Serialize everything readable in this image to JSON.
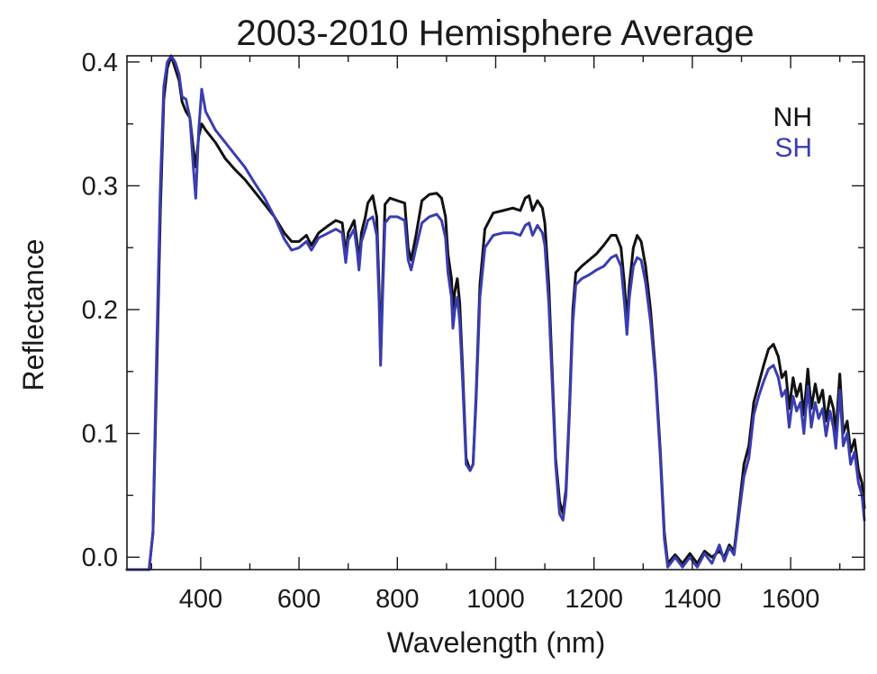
{
  "chart_data": {
    "type": "line",
    "title": "2003-2010 Hemisphere Average",
    "xlabel": "Wavelength (nm)",
    "ylabel": "Reflectance",
    "xlim": [
      250,
      1750
    ],
    "ylim": [
      -0.01,
      0.405
    ],
    "x_ticks": [
      {
        "value": 400,
        "label": "400"
      },
      {
        "value": 600,
        "label": "600"
      },
      {
        "value": 800,
        "label": "800"
      },
      {
        "value": 1000,
        "label": "1000"
      },
      {
        "value": 1200,
        "label": "1200"
      },
      {
        "value": 1400,
        "label": "1400"
      },
      {
        "value": 1600,
        "label": "1600"
      }
    ],
    "y_ticks": [
      {
        "value": 0.0,
        "label": "0.0"
      },
      {
        "value": 0.1,
        "label": "0.1"
      },
      {
        "value": 0.2,
        "label": "0.2"
      },
      {
        "value": 0.3,
        "label": "0.3"
      },
      {
        "value": 0.4,
        "label": "0.4"
      }
    ],
    "grid": false,
    "legend_position": "top-right",
    "series": [
      {
        "name": "NH",
        "color": "#111111",
        "points": [
          [
            250,
            -0.01
          ],
          [
            295,
            -0.01
          ],
          [
            303,
            0.02
          ],
          [
            310,
            0.14
          ],
          [
            318,
            0.28
          ],
          [
            325,
            0.37
          ],
          [
            332,
            0.395
          ],
          [
            340,
            0.405
          ],
          [
            348,
            0.395
          ],
          [
            356,
            0.385
          ],
          [
            362,
            0.368
          ],
          [
            370,
            0.36
          ],
          [
            378,
            0.355
          ],
          [
            385,
            0.33
          ],
          [
            390,
            0.315
          ],
          [
            396,
            0.34
          ],
          [
            402,
            0.35
          ],
          [
            410,
            0.345
          ],
          [
            430,
            0.335
          ],
          [
            450,
            0.322
          ],
          [
            470,
            0.313
          ],
          [
            490,
            0.305
          ],
          [
            510,
            0.295
          ],
          [
            530,
            0.285
          ],
          [
            550,
            0.275
          ],
          [
            570,
            0.262
          ],
          [
            585,
            0.255
          ],
          [
            600,
            0.255
          ],
          [
            615,
            0.26
          ],
          [
            625,
            0.252
          ],
          [
            640,
            0.262
          ],
          [
            660,
            0.268
          ],
          [
            675,
            0.272
          ],
          [
            688,
            0.27
          ],
          [
            695,
            0.245
          ],
          [
            700,
            0.262
          ],
          [
            712,
            0.272
          ],
          [
            718,
            0.255
          ],
          [
            722,
            0.238
          ],
          [
            727,
            0.262
          ],
          [
            735,
            0.275
          ],
          [
            740,
            0.286
          ],
          [
            750,
            0.292
          ],
          [
            758,
            0.275
          ],
          [
            763,
            0.215
          ],
          [
            766,
            0.16
          ],
          [
            770,
            0.22
          ],
          [
            775,
            0.285
          ],
          [
            785,
            0.29
          ],
          [
            800,
            0.288
          ],
          [
            815,
            0.286
          ],
          [
            822,
            0.25
          ],
          [
            828,
            0.24
          ],
          [
            838,
            0.26
          ],
          [
            850,
            0.288
          ],
          [
            865,
            0.293
          ],
          [
            880,
            0.294
          ],
          [
            890,
            0.29
          ],
          [
            898,
            0.275
          ],
          [
            903,
            0.245
          ],
          [
            910,
            0.225
          ],
          [
            913,
            0.2
          ],
          [
            917,
            0.215
          ],
          [
            922,
            0.225
          ],
          [
            927,
            0.205
          ],
          [
            933,
            0.15
          ],
          [
            940,
            0.08
          ],
          [
            948,
            0.07
          ],
          [
            954,
            0.075
          ],
          [
            960,
            0.13
          ],
          [
            968,
            0.22
          ],
          [
            978,
            0.265
          ],
          [
            995,
            0.278
          ],
          [
            1015,
            0.28
          ],
          [
            1035,
            0.282
          ],
          [
            1050,
            0.28
          ],
          [
            1060,
            0.29
          ],
          [
            1068,
            0.292
          ],
          [
            1075,
            0.28
          ],
          [
            1085,
            0.288
          ],
          [
            1095,
            0.282
          ],
          [
            1100,
            0.27
          ],
          [
            1108,
            0.22
          ],
          [
            1115,
            0.15
          ],
          [
            1122,
            0.08
          ],
          [
            1130,
            0.045
          ],
          [
            1137,
            0.035
          ],
          [
            1143,
            0.055
          ],
          [
            1150,
            0.12
          ],
          [
            1157,
            0.2
          ],
          [
            1163,
            0.23
          ],
          [
            1175,
            0.235
          ],
          [
            1190,
            0.24
          ],
          [
            1205,
            0.245
          ],
          [
            1220,
            0.252
          ],
          [
            1235,
            0.26
          ],
          [
            1245,
            0.26
          ],
          [
            1255,
            0.25
          ],
          [
            1262,
            0.22
          ],
          [
            1267,
            0.19
          ],
          [
            1272,
            0.22
          ],
          [
            1280,
            0.25
          ],
          [
            1288,
            0.26
          ],
          [
            1296,
            0.255
          ],
          [
            1305,
            0.235
          ],
          [
            1315,
            0.2
          ],
          [
            1325,
            0.15
          ],
          [
            1335,
            0.085
          ],
          [
            1343,
            0.02
          ],
          [
            1350,
            -0.005
          ],
          [
            1365,
            0.002
          ],
          [
            1380,
            -0.005
          ],
          [
            1395,
            0.003
          ],
          [
            1410,
            -0.005
          ],
          [
            1425,
            0.005
          ],
          [
            1440,
            0.0
          ],
          [
            1455,
            0.005
          ],
          [
            1465,
            0.0
          ],
          [
            1475,
            0.01
          ],
          [
            1485,
            0.005
          ],
          [
            1495,
            0.04
          ],
          [
            1505,
            0.075
          ],
          [
            1515,
            0.09
          ],
          [
            1525,
            0.125
          ],
          [
            1535,
            0.14
          ],
          [
            1545,
            0.155
          ],
          [
            1555,
            0.168
          ],
          [
            1565,
            0.172
          ],
          [
            1575,
            0.162
          ],
          [
            1582,
            0.145
          ],
          [
            1590,
            0.15
          ],
          [
            1597,
            0.12
          ],
          [
            1605,
            0.145
          ],
          [
            1612,
            0.13
          ],
          [
            1620,
            0.14
          ],
          [
            1627,
            0.115
          ],
          [
            1635,
            0.152
          ],
          [
            1642,
            0.12
          ],
          [
            1650,
            0.14
          ],
          [
            1657,
            0.125
          ],
          [
            1665,
            0.135
          ],
          [
            1672,
            0.11
          ],
          [
            1680,
            0.13
          ],
          [
            1687,
            0.12
          ],
          [
            1692,
            0.1
          ],
          [
            1700,
            0.148
          ],
          [
            1707,
            0.1
          ],
          [
            1715,
            0.11
          ],
          [
            1722,
            0.085
          ],
          [
            1730,
            0.095
          ],
          [
            1738,
            0.07
          ],
          [
            1745,
            0.06
          ],
          [
            1750,
            0.04
          ]
        ]
      },
      {
        "name": "SH",
        "color": "#3a3db0",
        "points": [
          [
            250,
            -0.01
          ],
          [
            295,
            -0.01
          ],
          [
            303,
            0.02
          ],
          [
            310,
            0.16
          ],
          [
            318,
            0.3
          ],
          [
            325,
            0.38
          ],
          [
            332,
            0.4
          ],
          [
            340,
            0.405
          ],
          [
            348,
            0.4
          ],
          [
            356,
            0.39
          ],
          [
            362,
            0.372
          ],
          [
            370,
            0.37
          ],
          [
            378,
            0.355
          ],
          [
            385,
            0.315
          ],
          [
            390,
            0.29
          ],
          [
            396,
            0.345
          ],
          [
            402,
            0.378
          ],
          [
            410,
            0.36
          ],
          [
            430,
            0.345
          ],
          [
            450,
            0.335
          ],
          [
            470,
            0.325
          ],
          [
            490,
            0.315
          ],
          [
            510,
            0.302
          ],
          [
            530,
            0.29
          ],
          [
            550,
            0.275
          ],
          [
            570,
            0.257
          ],
          [
            585,
            0.248
          ],
          [
            600,
            0.25
          ],
          [
            615,
            0.255
          ],
          [
            625,
            0.248
          ],
          [
            640,
            0.258
          ],
          [
            660,
            0.262
          ],
          [
            675,
            0.265
          ],
          [
            688,
            0.262
          ],
          [
            695,
            0.238
          ],
          [
            700,
            0.256
          ],
          [
            712,
            0.265
          ],
          [
            718,
            0.248
          ],
          [
            722,
            0.232
          ],
          [
            727,
            0.255
          ],
          [
            735,
            0.265
          ],
          [
            740,
            0.272
          ],
          [
            750,
            0.275
          ],
          [
            758,
            0.26
          ],
          [
            763,
            0.205
          ],
          [
            766,
            0.155
          ],
          [
            770,
            0.21
          ],
          [
            775,
            0.27
          ],
          [
            785,
            0.275
          ],
          [
            800,
            0.275
          ],
          [
            815,
            0.272
          ],
          [
            822,
            0.24
          ],
          [
            828,
            0.232
          ],
          [
            838,
            0.25
          ],
          [
            850,
            0.27
          ],
          [
            865,
            0.275
          ],
          [
            880,
            0.277
          ],
          [
            890,
            0.272
          ],
          [
            898,
            0.258
          ],
          [
            903,
            0.23
          ],
          [
            910,
            0.21
          ],
          [
            913,
            0.185
          ],
          [
            917,
            0.2
          ],
          [
            922,
            0.21
          ],
          [
            927,
            0.19
          ],
          [
            933,
            0.14
          ],
          [
            940,
            0.075
          ],
          [
            948,
            0.07
          ],
          [
            954,
            0.075
          ],
          [
            960,
            0.125
          ],
          [
            968,
            0.21
          ],
          [
            978,
            0.25
          ],
          [
            995,
            0.26
          ],
          [
            1015,
            0.262
          ],
          [
            1035,
            0.262
          ],
          [
            1050,
            0.26
          ],
          [
            1060,
            0.268
          ],
          [
            1068,
            0.27
          ],
          [
            1075,
            0.26
          ],
          [
            1085,
            0.268
          ],
          [
            1095,
            0.262
          ],
          [
            1100,
            0.252
          ],
          [
            1108,
            0.205
          ],
          [
            1115,
            0.14
          ],
          [
            1122,
            0.075
          ],
          [
            1130,
            0.035
          ],
          [
            1137,
            0.03
          ],
          [
            1143,
            0.05
          ],
          [
            1150,
            0.115
          ],
          [
            1157,
            0.19
          ],
          [
            1163,
            0.22
          ],
          [
            1175,
            0.225
          ],
          [
            1190,
            0.228
          ],
          [
            1205,
            0.232
          ],
          [
            1220,
            0.235
          ],
          [
            1235,
            0.242
          ],
          [
            1245,
            0.244
          ],
          [
            1255,
            0.235
          ],
          [
            1262,
            0.205
          ],
          [
            1267,
            0.18
          ],
          [
            1272,
            0.21
          ],
          [
            1280,
            0.235
          ],
          [
            1288,
            0.242
          ],
          [
            1296,
            0.24
          ],
          [
            1305,
            0.222
          ],
          [
            1315,
            0.19
          ],
          [
            1325,
            0.145
          ],
          [
            1335,
            0.08
          ],
          [
            1343,
            0.015
          ],
          [
            1350,
            -0.008
          ],
          [
            1365,
            0.0
          ],
          [
            1380,
            -0.008
          ],
          [
            1395,
            0.0
          ],
          [
            1410,
            -0.008
          ],
          [
            1425,
            0.003
          ],
          [
            1440,
            -0.005
          ],
          [
            1455,
            0.01
          ],
          [
            1465,
            -0.003
          ],
          [
            1475,
            0.008
          ],
          [
            1485,
            0.002
          ],
          [
            1495,
            0.035
          ],
          [
            1505,
            0.065
          ],
          [
            1515,
            0.08
          ],
          [
            1525,
            0.115
          ],
          [
            1535,
            0.13
          ],
          [
            1545,
            0.142
          ],
          [
            1555,
            0.152
          ],
          [
            1565,
            0.155
          ],
          [
            1575,
            0.145
          ],
          [
            1582,
            0.13
          ],
          [
            1590,
            0.135
          ],
          [
            1597,
            0.105
          ],
          [
            1605,
            0.13
          ],
          [
            1612,
            0.118
          ],
          [
            1620,
            0.125
          ],
          [
            1627,
            0.1
          ],
          [
            1635,
            0.138
          ],
          [
            1642,
            0.105
          ],
          [
            1650,
            0.125
          ],
          [
            1657,
            0.112
          ],
          [
            1665,
            0.12
          ],
          [
            1672,
            0.098
          ],
          [
            1680,
            0.118
          ],
          [
            1687,
            0.105
          ],
          [
            1692,
            0.088
          ],
          [
            1700,
            0.135
          ],
          [
            1707,
            0.09
          ],
          [
            1715,
            0.1
          ],
          [
            1722,
            0.075
          ],
          [
            1730,
            0.085
          ],
          [
            1738,
            0.06
          ],
          [
            1745,
            0.05
          ],
          [
            1750,
            0.03
          ]
        ]
      }
    ]
  }
}
